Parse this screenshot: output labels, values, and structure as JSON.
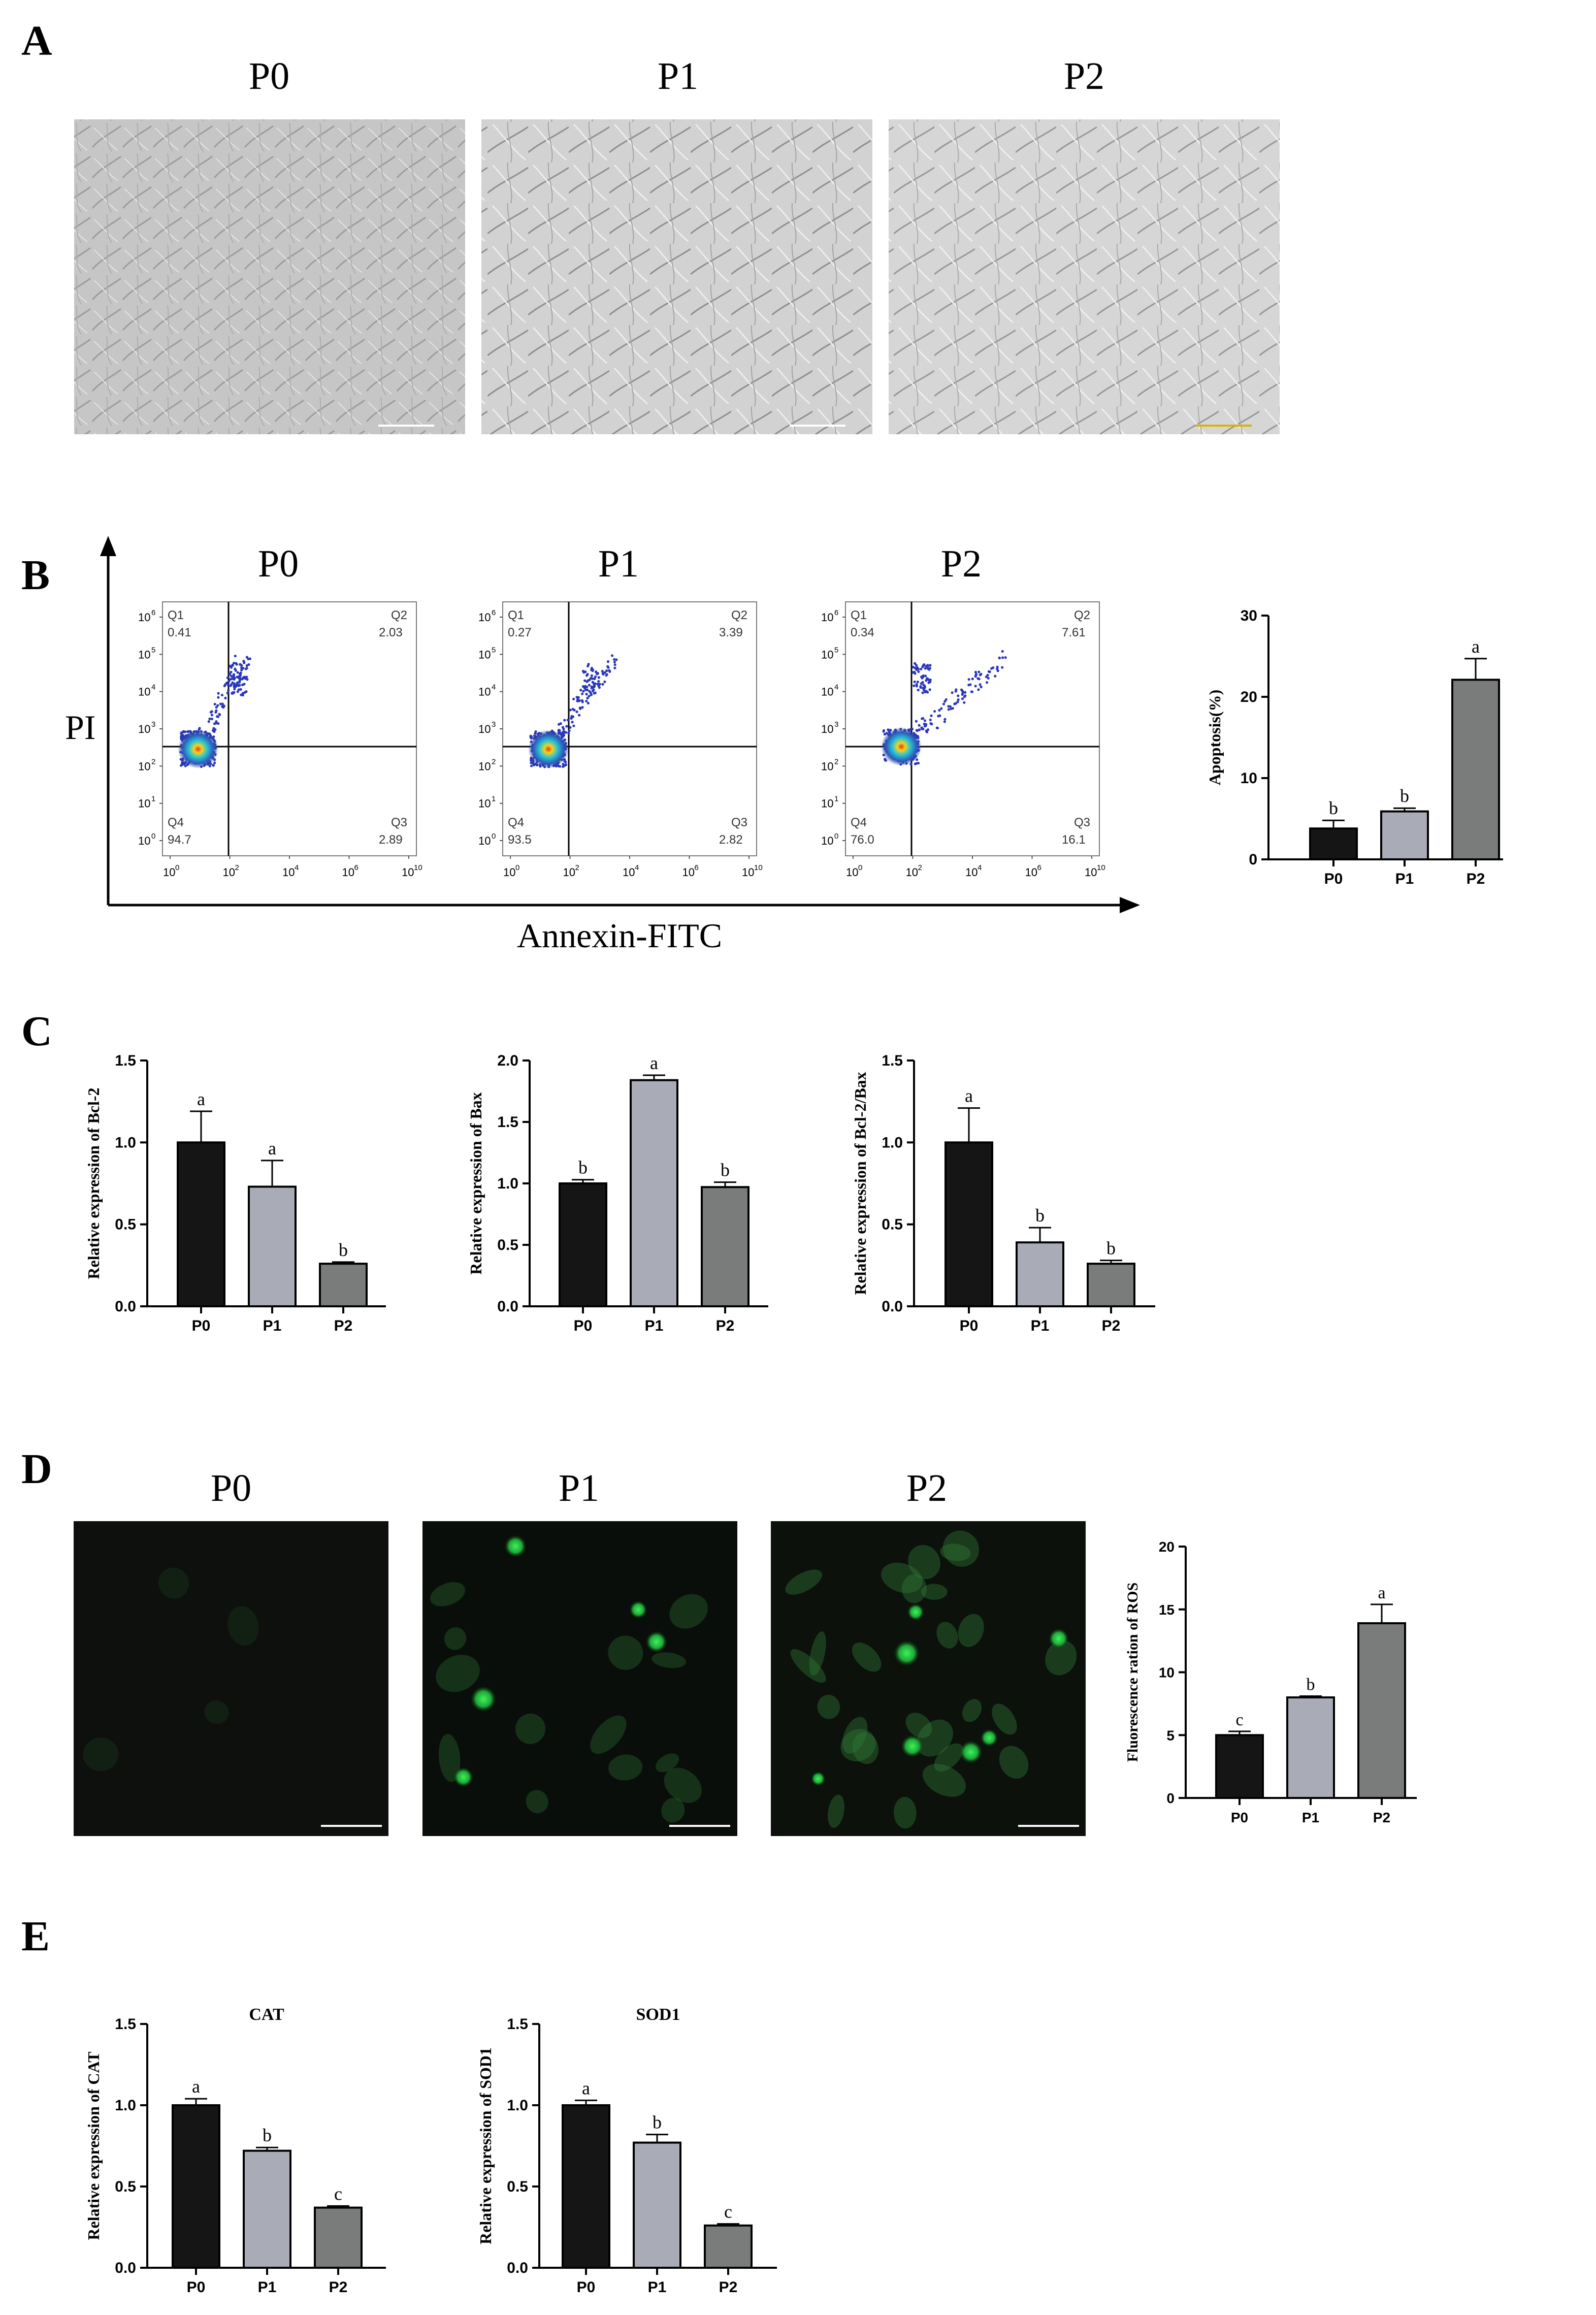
{
  "panels": {
    "A": {
      "label": "A",
      "titles": [
        "P0",
        "P1",
        "P2"
      ]
    },
    "B": {
      "label": "B",
      "titles": [
        "P0",
        "P1",
        "P2"
      ],
      "y_axis_label": "PI",
      "x_axis_label": "Annexin-FITC"
    },
    "C": {
      "label": "C"
    },
    "D": {
      "label": "D",
      "titles": [
        "P0",
        "P1",
        "P2"
      ]
    },
    "E": {
      "label": "E"
    }
  },
  "flow": {
    "tick_labels": [
      "10",
      "10",
      "10",
      "10",
      "10",
      "10",
      "10"
    ],
    "tick_exponents": [
      "0",
      "1",
      "2",
      "3",
      "4",
      "5",
      "6"
    ],
    "x_tick_labels": [
      "10",
      "10",
      "10",
      "10",
      "10"
    ],
    "x_tick_exponents": [
      "0",
      "2",
      "4",
      "6",
      "10"
    ],
    "plots": [
      {
        "q1": "Q1",
        "q1_val": "0.41",
        "q2": "Q2",
        "q2_val": "2.03",
        "q3": "Q3",
        "q3_val": "2.89",
        "q4": "Q4",
        "q4_val": "94.7"
      },
      {
        "q1": "Q1",
        "q1_val": "0.27",
        "q2": "Q2",
        "q2_val": "3.39",
        "q3": "Q3",
        "q3_val": "2.82",
        "q4": "Q4",
        "q4_val": "93.5"
      },
      {
        "q1": "Q1",
        "q1_val": "0.34",
        "q2": "Q2",
        "q2_val": "7.61",
        "q3": "Q3",
        "q3_val": "16.1",
        "q4": "Q4",
        "q4_val": "76.0"
      }
    ]
  },
  "colors": {
    "bar_p0": "#151515",
    "bar_p1": "#a9abb6",
    "bar_p2": "#7a7c7c",
    "fluor_green": "#2fd84a"
  },
  "chart_data": [
    {
      "id": "apoptosis",
      "type": "bar",
      "categories": [
        "P0",
        "P1",
        "P2"
      ],
      "values": [
        3.8,
        5.9,
        22.1
      ],
      "errors": [
        1.0,
        0.4,
        2.6
      ],
      "letters": [
        "b",
        "b",
        "a"
      ],
      "title": "",
      "xlabel": "",
      "ylabel": "Apoptosis(%)",
      "ylim": [
        0,
        30
      ],
      "yticks": [
        "0",
        "10",
        "20",
        "30"
      ]
    },
    {
      "id": "bcl2",
      "type": "bar",
      "categories": [
        "P0",
        "P1",
        "P2"
      ],
      "values": [
        1.0,
        0.73,
        0.26
      ],
      "errors": [
        0.19,
        0.16,
        0.01
      ],
      "letters": [
        "a",
        "a",
        "b"
      ],
      "title": "",
      "xlabel": "",
      "ylabel": "Relative expression of Bcl-2",
      "ylim": [
        0,
        1.5
      ],
      "yticks": [
        "0.0",
        "0.5",
        "1.0",
        "1.5"
      ]
    },
    {
      "id": "bax",
      "type": "bar",
      "categories": [
        "P0",
        "P1",
        "P2"
      ],
      "values": [
        1.0,
        1.84,
        0.97
      ],
      "errors": [
        0.03,
        0.04,
        0.04
      ],
      "letters": [
        "b",
        "a",
        "b"
      ],
      "title": "",
      "xlabel": "",
      "ylabel": "Relative expression of Bax",
      "ylim": [
        0,
        2.0
      ],
      "yticks": [
        "0.0",
        "0.5",
        "1.0",
        "1.5",
        "2.0"
      ]
    },
    {
      "id": "bcl2bax",
      "type": "bar",
      "categories": [
        "P0",
        "P1",
        "P2"
      ],
      "values": [
        1.0,
        0.39,
        0.26
      ],
      "errors": [
        0.21,
        0.09,
        0.02
      ],
      "letters": [
        "a",
        "b",
        "b"
      ],
      "title": "",
      "xlabel": "",
      "ylabel": "Relative expression of Bcl-2/Bax",
      "ylim": [
        0,
        1.5
      ],
      "yticks": [
        "0.0",
        "0.5",
        "1.0",
        "1.5"
      ]
    },
    {
      "id": "ros",
      "type": "bar",
      "categories": [
        "P0",
        "P1",
        "P2"
      ],
      "values": [
        5.0,
        8.0,
        13.9
      ],
      "errors": [
        0.3,
        0.1,
        1.5
      ],
      "letters": [
        "c",
        "b",
        "a"
      ],
      "title": "",
      "xlabel": "",
      "ylabel": "Fluorescence ration of ROS",
      "ylim": [
        0,
        20
      ],
      "yticks": [
        "0",
        "5",
        "10",
        "15",
        "20"
      ]
    },
    {
      "id": "cat",
      "type": "bar",
      "categories": [
        "P0",
        "P1",
        "P2"
      ],
      "values": [
        1.0,
        0.72,
        0.37
      ],
      "errors": [
        0.04,
        0.02,
        0.01
      ],
      "letters": [
        "a",
        "b",
        "c"
      ],
      "title": "CAT",
      "xlabel": "",
      "ylabel": "Relative expression of CAT",
      "ylim": [
        0,
        1.5
      ],
      "yticks": [
        "0.0",
        "0.5",
        "1.0",
        "1.5"
      ]
    },
    {
      "id": "sod1",
      "type": "bar",
      "categories": [
        "P0",
        "P1",
        "P2"
      ],
      "values": [
        1.0,
        0.77,
        0.26
      ],
      "errors": [
        0.03,
        0.05,
        0.01
      ],
      "letters": [
        "a",
        "b",
        "c"
      ],
      "title": "SOD1",
      "xlabel": "",
      "ylabel": "Relative expression of SOD1",
      "ylim": [
        0,
        1.5
      ],
      "yticks": [
        "0.0",
        "0.5",
        "1.0",
        "1.5"
      ]
    }
  ]
}
